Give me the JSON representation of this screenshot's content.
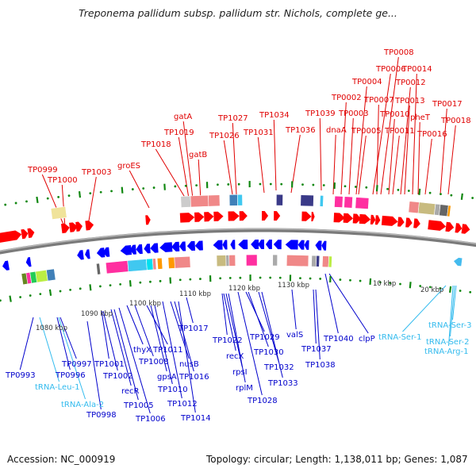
{
  "title": "Treponema pallidum subsp. pallidum str. Nichols, complete ge...",
  "footer": {
    "accession": "Accession: NC_000919",
    "summary": "Topology: circular; Length: 1,138,011 bp; Genes: 1,087"
  },
  "colors": {
    "forward_gene": "#ff0000",
    "reverse_gene": "#0000ff",
    "forward_label": "#e00000",
    "reverse_label": "#0000cc",
    "trna_label": "#33bbee",
    "backbone": "#888888",
    "tick": "#118811"
  },
  "kbp_labels": [
    {
      "text": "1080 kbp"
    },
    {
      "text": "1090 kbp"
    },
    {
      "text": "1100 kbp"
    },
    {
      "text": "1110 kbp"
    },
    {
      "text": "1120 kbp"
    },
    {
      "text": "1130 kbp"
    },
    {
      "text": "10 kbp"
    },
    {
      "text": "20 kbp"
    }
  ],
  "top_labels": [
    {
      "text": "TP0999"
    },
    {
      "text": "TP1000"
    },
    {
      "text": "TP1003"
    },
    {
      "text": "groES"
    },
    {
      "text": "TP1018"
    },
    {
      "text": "TP1019"
    },
    {
      "text": "gatA"
    },
    {
      "text": "gatB"
    },
    {
      "text": "TP1026"
    },
    {
      "text": "TP1027"
    },
    {
      "text": "TP1031"
    },
    {
      "text": "TP1034"
    },
    {
      "text": "TP1036"
    },
    {
      "text": "TP1039"
    },
    {
      "text": "dnaA"
    },
    {
      "text": "TP0002"
    },
    {
      "text": "TP0003"
    },
    {
      "text": "TP0004"
    },
    {
      "text": "TP0005"
    },
    {
      "text": "TP0006"
    },
    {
      "text": "TP0007"
    },
    {
      "text": "TP0008"
    },
    {
      "text": "TP0010"
    },
    {
      "text": "TP0011"
    },
    {
      "text": "TP0012"
    },
    {
      "text": "TP0013"
    },
    {
      "text": "TP0014"
    },
    {
      "text": "pheT"
    },
    {
      "text": "TP0016"
    },
    {
      "text": "TP0017"
    },
    {
      "text": "TP0018"
    }
  ],
  "bottom_labels": [
    {
      "text": "TP0993"
    },
    {
      "text": "TP0996"
    },
    {
      "text": "TP0997"
    },
    {
      "text": "tRNA-Leu-1",
      "trna": true
    },
    {
      "text": "tRNA-Ala-2",
      "trna": true
    },
    {
      "text": "TP0998"
    },
    {
      "text": "TP1001"
    },
    {
      "text": "TP1002"
    },
    {
      "text": "recR"
    },
    {
      "text": "TP1005"
    },
    {
      "text": "TP1006"
    },
    {
      "text": "thyX"
    },
    {
      "text": "TP1008"
    },
    {
      "text": "TP1011"
    },
    {
      "text": "gpsA"
    },
    {
      "text": "TP1010"
    },
    {
      "text": "TP1012"
    },
    {
      "text": "nusB"
    },
    {
      "text": "TP1016"
    },
    {
      "text": "TP1014"
    },
    {
      "text": "TP1017"
    },
    {
      "text": "TP1022"
    },
    {
      "text": "recX"
    },
    {
      "text": "rpsI"
    },
    {
      "text": "rplM"
    },
    {
      "text": "TP1028"
    },
    {
      "text": "TP1029"
    },
    {
      "text": "TP1030"
    },
    {
      "text": "TP1032"
    },
    {
      "text": "TP1033"
    },
    {
      "text": "valS"
    },
    {
      "text": "TP1037"
    },
    {
      "text": "TP1038"
    },
    {
      "text": "TP1040"
    },
    {
      "text": "clpP"
    },
    {
      "text": "tRNA-Ser-1",
      "trna": true
    },
    {
      "text": "tRNA-Ser-3",
      "trna": true
    },
    {
      "text": "tRNA-Ser-2",
      "trna": true
    },
    {
      "text": "tRNA-Arg-1",
      "trna": true
    }
  ],
  "cog_colors": [
    "#f0e39a",
    "#22cc55",
    "#ff2fa0",
    "#cccccc",
    "#f08888",
    "#4080b8",
    "#40c8f0",
    "#3a3a88",
    "#c8bb80",
    "#ff9900",
    "#bbee44",
    "#668822",
    "#666666",
    "#aaaaaa",
    "#00e0f0"
  ]
}
